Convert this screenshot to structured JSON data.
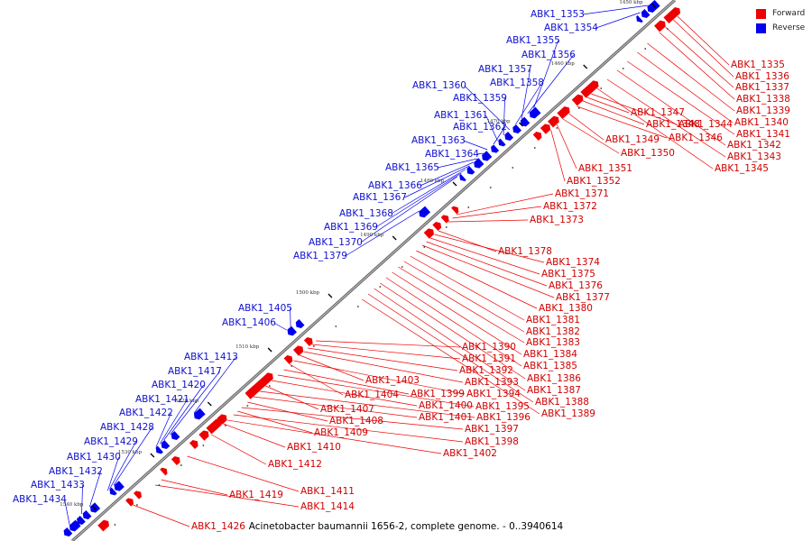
{
  "caption": "Acinetobacter baumannii 1656-2, complete genome. - 0..3940614",
  "legend": [
    {
      "label": "Forward",
      "color": "#ee0000"
    },
    {
      "label": "Reverse",
      "color": "#0000ee"
    }
  ],
  "colors": {
    "forward": "#ee0000",
    "reverse": "#0000ee",
    "backbone": "#777777"
  },
  "ticks": [
    "1450 kbp",
    "1460 kbp",
    "1470 kbp",
    "1480 kbp",
    "1490 kbp",
    "1500 kbp",
    "1510 kbp",
    "1520 kbp",
    "1530 kbp",
    "1540 kbp"
  ],
  "forward_labels": [
    "ABK1_1335",
    "ABK1_1336",
    "ABK1_1337",
    "ABK1_1338",
    "ABK1_1339",
    "ABK1_1340",
    "ABK1_1341",
    "ABK1_1342",
    "ABK1_1343",
    "ABK1_1345",
    "ABK1_1344",
    "ABK1_1347",
    "ABK1_1348",
    "ABK1_1346",
    "ABK1_1349",
    "ABK1_1350",
    "ABK1_1351",
    "ABK1_1352",
    "ABK1_1371",
    "ABK1_1372",
    "ABK1_1373",
    "ABK1_1378",
    "ABK1_1374",
    "ABK1_1375",
    "ABK1_1376",
    "ABK1_1377",
    "ABK1_1380",
    "ABK1_1381",
    "ABK1_1382",
    "ABK1_1383",
    "ABK1_1390",
    "ABK1_1384",
    "ABK1_1391",
    "ABK1_1385",
    "ABK1_1392",
    "ABK1_1386",
    "ABK1_1393",
    "ABK1_1403",
    "ABK1_1387",
    "ABK1_1394",
    "ABK1_1404",
    "ABK1_1399",
    "ABK1_1388",
    "ABK1_1395",
    "ABK1_1400",
    "ABK1_1389",
    "ABK1_1407",
    "ABK1_1396",
    "ABK1_1401",
    "ABK1_1408",
    "ABK1_1397",
    "ABK1_1409",
    "ABK1_1398",
    "ABK1_1410",
    "ABK1_1402",
    "ABK1_1412",
    "ABK1_1411",
    "ABK1_1419",
    "ABK1_1414",
    "ABK1_1426"
  ],
  "reverse_labels": [
    "ABK1_1353",
    "ABK1_1354",
    "ABK1_1355",
    "ABK1_1356",
    "ABK1_1357",
    "ABK1_1358",
    "ABK1_1360",
    "ABK1_1359",
    "ABK1_1361",
    "ABK1_1362",
    "ABK1_1363",
    "ABK1_1364",
    "ABK1_1365",
    "ABK1_1366",
    "ABK1_1367",
    "ABK1_1368",
    "ABK1_1369",
    "ABK1_1370",
    "ABK1_1379",
    "ABK1_1405",
    "ABK1_1406",
    "ABK1_1413",
    "ABK1_1417",
    "ABK1_1420",
    "ABK1_1421",
    "ABK1_1422",
    "ABK1_1428",
    "ABK1_1429",
    "ABK1_1430",
    "ABK1_1432",
    "ABK1_1433",
    "ABK1_1434"
  ]
}
